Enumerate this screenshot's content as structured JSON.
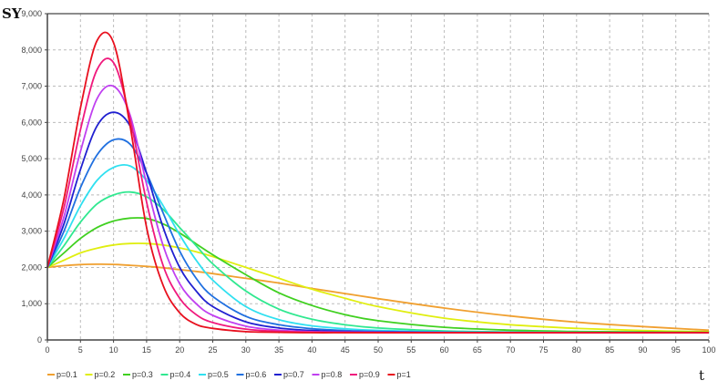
{
  "chart_data": {
    "type": "line",
    "title": "",
    "xlabel": "t",
    "ylabel": "SY",
    "xlim": [
      0,
      100
    ],
    "ylim": [
      0,
      9000
    ],
    "grid": true,
    "legend_position": "bottom-left",
    "x_ticks": [
      "0",
      "5",
      "10",
      "15",
      "20",
      "25",
      "30",
      "35",
      "40",
      "45",
      "50",
      "55",
      "60",
      "65",
      "70",
      "75",
      "80",
      "85",
      "90",
      "95",
      "100"
    ],
    "y_ticks": [
      "0",
      "1,000",
      "2,000",
      "3,000",
      "4,000",
      "5,000",
      "6,000",
      "7,000",
      "8,000",
      "9,000"
    ],
    "x": [
      0,
      2.5,
      5,
      7.5,
      10,
      12.5,
      15,
      17.5,
      20,
      22.5,
      25,
      30,
      35,
      40,
      45,
      50,
      60,
      70,
      80,
      90,
      100
    ],
    "series": [
      {
        "name": "p=0.1",
        "color": "#f0a030",
        "values": [
          2000,
          2050,
          2080,
          2090,
          2085,
          2060,
          2030,
          1990,
          1940,
          1890,
          1830,
          1700,
          1570,
          1420,
          1280,
          1140,
          880,
          660,
          490,
          370,
          270
        ]
      },
      {
        "name": "p=0.2",
        "color": "#e0ee10",
        "values": [
          2000,
          2200,
          2400,
          2530,
          2620,
          2660,
          2660,
          2620,
          2540,
          2430,
          2300,
          2000,
          1700,
          1400,
          1150,
          920,
          600,
          420,
          320,
          260,
          230
        ]
      },
      {
        "name": "p=0.3",
        "color": "#40d020",
        "values": [
          2000,
          2400,
          2800,
          3100,
          3280,
          3360,
          3350,
          3200,
          2950,
          2650,
          2350,
          1800,
          1300,
          950,
          700,
          530,
          350,
          270,
          235,
          220,
          210
        ]
      },
      {
        "name": "p=0.4",
        "color": "#30e890",
        "values": [
          2000,
          2600,
          3250,
          3750,
          4000,
          4080,
          3950,
          3600,
          3100,
          2600,
          2100,
          1350,
          850,
          570,
          420,
          330,
          250,
          220,
          210,
          205,
          200
        ]
      },
      {
        "name": "p=0.5",
        "color": "#30e0f0",
        "values": [
          2000,
          2800,
          3700,
          4400,
          4760,
          4800,
          4400,
          3700,
          2900,
          2200,
          1650,
          920,
          560,
          390,
          310,
          265,
          225,
          210,
          205,
          200,
          200
        ]
      },
      {
        "name": "p=0.6",
        "color": "#2070e0",
        "values": [
          2000,
          3000,
          4200,
          5100,
          5520,
          5400,
          4600,
          3500,
          2450,
          1700,
          1200,
          650,
          420,
          310,
          260,
          235,
          210,
          205,
          200,
          200,
          200
        ]
      },
      {
        "name": "p=0.7",
        "color": "#2020d0",
        "values": [
          2000,
          3200,
          4700,
          5900,
          6280,
          5900,
          4600,
          3100,
          2000,
          1350,
          920,
          500,
          330,
          260,
          230,
          215,
          205,
          200,
          200,
          200,
          200
        ]
      },
      {
        "name": "p=0.8",
        "color": "#c040f0",
        "values": [
          2000,
          3400,
          5200,
          6650,
          7000,
          6200,
          4300,
          2600,
          1550,
          1000,
          680,
          380,
          270,
          230,
          215,
          210,
          200,
          200,
          200,
          200,
          200
        ]
      },
      {
        "name": "p=0.9",
        "color": "#f0197d",
        "values": [
          2000,
          3650,
          5800,
          7450,
          7650,
          6100,
          3800,
          2050,
          1150,
          700,
          480,
          300,
          240,
          215,
          205,
          200,
          200,
          200,
          200,
          200,
          200
        ]
      },
      {
        "name": "p=1",
        "color": "#e8101e",
        "values": [
          2000,
          3900,
          6400,
          8250,
          8200,
          5900,
          3100,
          1500,
          750,
          430,
          320,
          230,
          210,
          200,
          200,
          200,
          200,
          200,
          200,
          200,
          200
        ]
      }
    ]
  }
}
